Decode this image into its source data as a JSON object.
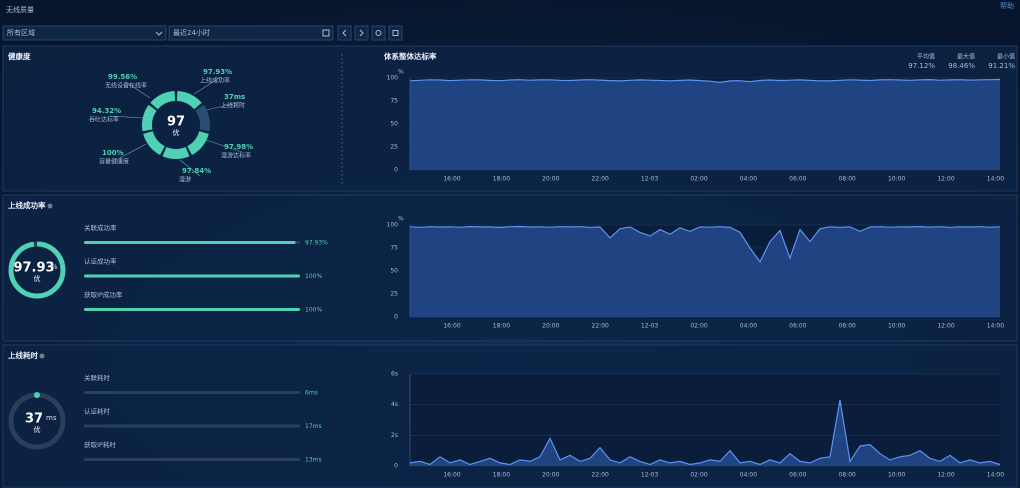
{
  "header": {
    "title": "无线质量",
    "help": "帮助"
  },
  "filters": {
    "region": "所有区域",
    "range": "最近24小时"
  },
  "health": {
    "title": "健康度",
    "score": "97",
    "grade": "优",
    "metrics": [
      {
        "value": "99.56%",
        "label": "无线设备在线率"
      },
      {
        "value": "97.93%",
        "label": "上线成功率"
      },
      {
        "value": "37ms",
        "label": "上线耗时"
      },
      {
        "value": "97.98%",
        "label": "漫游达标率"
      },
      {
        "value": "97.84%",
        "label": "漫游"
      },
      {
        "value": "100%",
        "label": "容量健康度"
      },
      {
        "value": "94.32%",
        "label": "吞吐达标率"
      }
    ]
  },
  "overall": {
    "title": "体系整体达标率",
    "stats": [
      {
        "label": "平均值",
        "value": "97.12%"
      },
      {
        "label": "最大值",
        "value": "98.46%"
      },
      {
        "label": "最小值",
        "value": "91.21%"
      }
    ],
    "unit": "%",
    "ylim": [
      0,
      100
    ],
    "yticks": [
      0,
      25,
      50,
      75,
      100
    ],
    "xticks": [
      "16:00",
      "18:00",
      "20:00",
      "22:00",
      "12-03",
      "02:00",
      "04:00",
      "06:00",
      "08:00",
      "10:00",
      "12:00",
      "14:00"
    ],
    "values": [
      97,
      97.5,
      98,
      97.8,
      97.2,
      97.6,
      98,
      97.9,
      97.4,
      97.1,
      97.8,
      98.2,
      97.6,
      97.9,
      98,
      97.5,
      97.3,
      97.8,
      98.1,
      97.7,
      97.2,
      96.8,
      97.5,
      97.9,
      97.6,
      97.3,
      96.9,
      97.4,
      97.8,
      97.2,
      96.5,
      95.2,
      96.8,
      97.1,
      96,
      97.4,
      97.8,
      97.3,
      97.6,
      97.9,
      97.4,
      97,
      96.8,
      97.5,
      98,
      97.7,
      97.3,
      97.9,
      98.2,
      97.8,
      97.5,
      97.9,
      98.3,
      97.6,
      97.9,
      98.1,
      97.7,
      98,
      98.2,
      98.4
    ]
  },
  "online": {
    "title": "上线成功率",
    "score": 97.93,
    "unit": "%",
    "grade": "优",
    "items": [
      {
        "label": "关联成功率",
        "value": 97.93,
        "value_label": "97.93%"
      },
      {
        "label": "认证成功率",
        "value": 100,
        "value_label": "100%"
      },
      {
        "label": "获取IP成功率",
        "value": 100,
        "value_label": "100%"
      }
    ],
    "chart": {
      "unit": "%",
      "ylim": [
        0,
        100
      ],
      "yticks": [
        0,
        25,
        50,
        75,
        100
      ],
      "xticks": [
        "16:00",
        "18:00",
        "20:00",
        "22:00",
        "12-03",
        "02:00",
        "04:00",
        "06:00",
        "08:00",
        "10:00",
        "12:00",
        "14:00"
      ],
      "values": [
        98,
        97.5,
        98.2,
        97.8,
        98,
        97.6,
        98.3,
        97.9,
        98,
        97.4,
        98.1,
        98.4,
        97.8,
        98,
        97.6,
        98.2,
        97.9,
        98.1,
        97.5,
        97.8,
        86,
        96,
        97.8,
        92,
        88,
        95,
        90,
        97,
        93,
        98,
        97.6,
        98.2,
        97.4,
        92,
        75,
        60,
        82,
        94,
        64,
        95,
        82,
        96,
        98,
        97.5,
        98,
        93,
        97.8,
        98.2,
        97.6,
        98,
        97.9,
        98.3,
        97.7,
        98.1,
        97.5,
        98,
        97.8,
        98.2,
        97.6,
        98
      ]
    }
  },
  "latency": {
    "title": "上线耗时",
    "score": 37,
    "unit": "ms",
    "grade": "优",
    "items": [
      {
        "label": "关联耗时",
        "value": "6ms"
      },
      {
        "label": "认证耗时",
        "value": "17ms"
      },
      {
        "label": "获取IP耗时",
        "value": "13ms"
      }
    ],
    "chart": {
      "ylim": [
        0,
        6
      ],
      "yticks": [
        0,
        {
          "value": 2,
          "label": "2s"
        },
        {
          "value": 4,
          "label": "4s"
        },
        {
          "value": 6,
          "label": "6s"
        }
      ],
      "xticks": [
        "16:00",
        "18:00",
        "20:00",
        "22:00",
        "12-03",
        "02:00",
        "04:00",
        "06:00",
        "08:00",
        "10:00",
        "12:00",
        "14:00"
      ],
      "values": [
        0.2,
        0.3,
        0.1,
        0.6,
        0.2,
        0.4,
        0.1,
        0.3,
        0.5,
        0.2,
        0.1,
        0.4,
        0.3,
        0.6,
        1.8,
        0.4,
        0.7,
        0.3,
        0.5,
        1.2,
        0.4,
        0.2,
        0.6,
        0.3,
        0.1,
        0.4,
        0.2,
        0.3,
        0.1,
        0.2,
        0.4,
        0.3,
        1,
        0.2,
        0.3,
        0.1,
        0.4,
        0.2,
        0.8,
        0.3,
        0.2,
        0.5,
        0.6,
        4.3,
        0.3,
        1.3,
        1.4,
        0.8,
        0.4,
        0.6,
        0.7,
        1,
        0.5,
        0.3,
        0.7,
        0.2,
        0.4,
        0.2,
        0.3,
        0.1
      ]
    }
  }
}
